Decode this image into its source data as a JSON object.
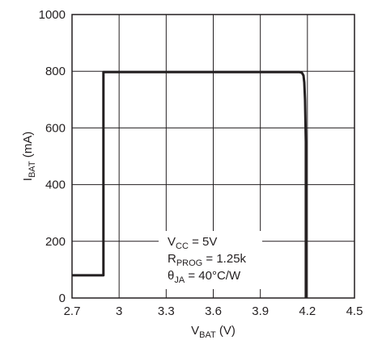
{
  "chart_data": {
    "type": "line",
    "xlabel": {
      "main": "V",
      "sub": "BAT",
      "tail": " (V)"
    },
    "ylabel": {
      "main": "I",
      "sub": "BAT",
      "tail": " (mA)"
    },
    "xlim": [
      2.7,
      4.5
    ],
    "ylim": [
      0,
      1000
    ],
    "x_ticks": [
      "2.7",
      "3",
      "3.3",
      "3.6",
      "3.9",
      "4.2",
      "4.5"
    ],
    "y_ticks": [
      "0",
      "200",
      "400",
      "600",
      "800",
      "1000"
    ],
    "grid": true,
    "series": [
      {
        "x": [
          2.7,
          2.9,
          2.9,
          4.15,
          4.165,
          4.175,
          4.18,
          4.185,
          4.19,
          4.19
        ],
        "y": [
          80,
          80,
          797,
          797,
          795,
          785,
          760,
          700,
          550,
          0
        ]
      }
    ],
    "annotation": [
      {
        "main": "V",
        "sub": "CC",
        "tail": " = 5V"
      },
      {
        "main": "R",
        "sub": "PROG",
        "tail": " = 1.25k"
      },
      {
        "main": "θ",
        "sub": "JA",
        "tail": " = 40°C/W"
      }
    ],
    "colors": {
      "line": "#231f20",
      "grid": "#231f20",
      "background": "#ffffff"
    }
  }
}
